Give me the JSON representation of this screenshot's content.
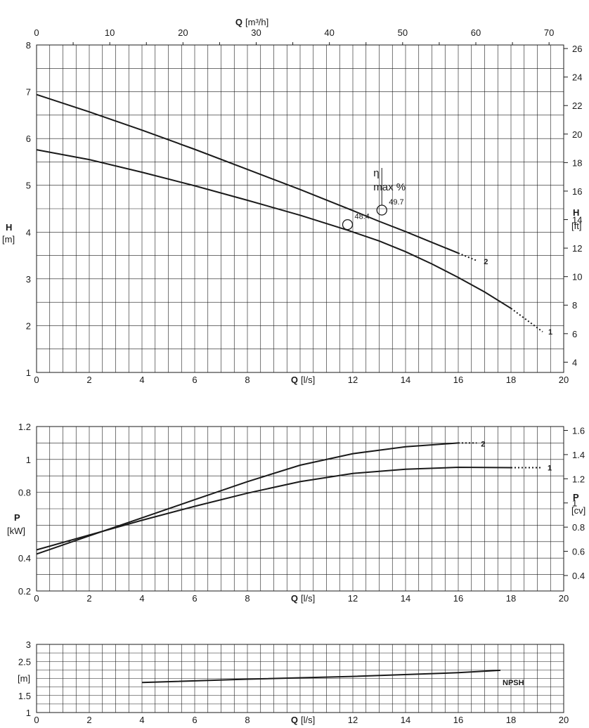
{
  "chart_data": [
    {
      "id": "head",
      "type": "line",
      "top_axis": {
        "label_bold": "Q",
        "label_unit": "[m³/h]",
        "range": [
          0,
          72
        ],
        "ticks": [
          "0",
          "10",
          "20",
          "30",
          "40",
          "50",
          "60",
          "70"
        ],
        "tick_values": [
          0,
          10,
          20,
          30,
          40,
          50,
          60,
          70
        ]
      },
      "x_axis": {
        "label_bold": "Q",
        "label_unit": "[l/s]",
        "range": [
          0,
          20
        ],
        "ticks": [
          "0",
          "2",
          "4",
          "6",
          "8",
          "12",
          "14",
          "16",
          "18",
          "20"
        ],
        "tick_values": [
          0,
          2,
          4,
          6,
          8,
          12,
          14,
          16,
          18,
          20
        ]
      },
      "y_axis": {
        "label_bold": "H",
        "label_unit": "[m]",
        "range": [
          1,
          8
        ],
        "ticks": [
          "1",
          "2",
          "3",
          "4",
          "5",
          "6",
          "7",
          "8"
        ],
        "tick_values": [
          1,
          2,
          3,
          4,
          5,
          6,
          7,
          8
        ]
      },
      "y2_axis": {
        "label_bold": "H",
        "label_unit": "[ft]",
        "range": [
          3.28,
          26.25
        ],
        "ticks": [
          "4",
          "6",
          "8",
          "10",
          "12",
          "14",
          "16",
          "18",
          "20",
          "22",
          "24",
          "26"
        ],
        "tick_values": [
          4,
          6,
          8,
          10,
          12,
          14,
          16,
          18,
          20,
          22,
          24,
          26
        ]
      },
      "grid": true,
      "series": [
        {
          "name": "1",
          "x": [
            0,
            2,
            4,
            6,
            8,
            10,
            11.8,
            13,
            14,
            15,
            16,
            17,
            18
          ],
          "y": [
            5.76,
            5.55,
            5.28,
            4.99,
            4.68,
            4.36,
            4.04,
            3.81,
            3.58,
            3.32,
            3.03,
            2.72,
            2.37
          ],
          "dotted_x": [
            18,
            19.2
          ],
          "dotted_y": [
            2.37,
            1.87
          ]
        },
        {
          "name": "2",
          "x": [
            0,
            2,
            4,
            6,
            8,
            10,
            12,
            13,
            14,
            15,
            16
          ],
          "y": [
            6.94,
            6.57,
            6.18,
            5.77,
            5.34,
            4.91,
            4.46,
            4.23,
            4.01,
            3.78,
            3.55
          ],
          "dotted_x": [
            16,
            16.7
          ],
          "dotted_y": [
            3.55,
            3.39
          ]
        }
      ],
      "efficiency_points": [
        {
          "label": "48.4",
          "x": 11.8,
          "y": 4.16
        },
        {
          "label": "49.7",
          "x": 13.1,
          "y": 4.47
        }
      ],
      "annotation_eta": "η",
      "annotation_max": "max %"
    },
    {
      "id": "power",
      "type": "line",
      "x_axis": {
        "label_bold": "Q",
        "label_unit": "[l/s]",
        "range": [
          0,
          20
        ],
        "ticks": [
          "0",
          "2",
          "4",
          "6",
          "8",
          "12",
          "14",
          "16",
          "18",
          "20"
        ],
        "tick_values": [
          0,
          2,
          4,
          6,
          8,
          12,
          14,
          16,
          18,
          20
        ]
      },
      "y_axis": {
        "label_bold": "P",
        "label_unit": "[kW]",
        "range": [
          0.2,
          1.2
        ],
        "ticks": [
          "0.2",
          "0.4",
          "",
          "0.8",
          "1",
          "1.2"
        ],
        "tick_values": [
          0.2,
          0.4,
          0.6,
          0.8,
          1.0,
          1.2
        ]
      },
      "y2_axis": {
        "label_bold": "P",
        "label_unit": "[cv]",
        "range": [
          0.272,
          1.632
        ],
        "ticks": [
          "0.4",
          "0.6",
          "0.8",
          "1",
          "1.2",
          "1.4",
          "1.6"
        ],
        "tick_values": [
          0.4,
          0.6,
          0.8,
          1.0,
          1.2,
          1.4,
          1.6
        ]
      },
      "grid": true,
      "series": [
        {
          "name": "1",
          "x": [
            0,
            2,
            4,
            6,
            8,
            10,
            12,
            14,
            16,
            18
          ],
          "y": [
            0.45,
            0.54,
            0.63,
            0.715,
            0.795,
            0.865,
            0.915,
            0.94,
            0.952,
            0.95
          ],
          "dotted_x": [
            18,
            19.2
          ],
          "dotted_y": [
            0.95,
            0.95
          ]
        },
        {
          "name": "2",
          "x": [
            0,
            2,
            4,
            6,
            8,
            10,
            12,
            14,
            16
          ],
          "y": [
            0.425,
            0.535,
            0.645,
            0.755,
            0.865,
            0.965,
            1.035,
            1.077,
            1.1
          ],
          "dotted_x": [
            16,
            16.7
          ],
          "dotted_y": [
            1.1,
            1.1
          ]
        }
      ]
    },
    {
      "id": "npsh",
      "type": "line",
      "x_axis": {
        "label_bold": "Q",
        "label_unit": "[l/s]",
        "range": [
          0,
          20
        ],
        "ticks": [
          "0",
          "2",
          "4",
          "6",
          "8",
          "12",
          "14",
          "16",
          "18",
          "20"
        ],
        "tick_values": [
          0,
          2,
          4,
          6,
          8,
          12,
          14,
          16,
          18,
          20
        ]
      },
      "y_axis": {
        "label_unit": "[m]",
        "range": [
          1,
          3
        ],
        "ticks": [
          "1",
          "1.5",
          "",
          "2.5",
          "3"
        ],
        "tick_values": [
          1,
          1.5,
          2,
          2.5,
          3
        ]
      },
      "grid": true,
      "series": [
        {
          "name": "NPSH",
          "x": [
            4,
            8,
            12,
            16,
            17.6
          ],
          "y": [
            1.88,
            1.98,
            2.06,
            2.17,
            2.24
          ]
        }
      ]
    }
  ]
}
